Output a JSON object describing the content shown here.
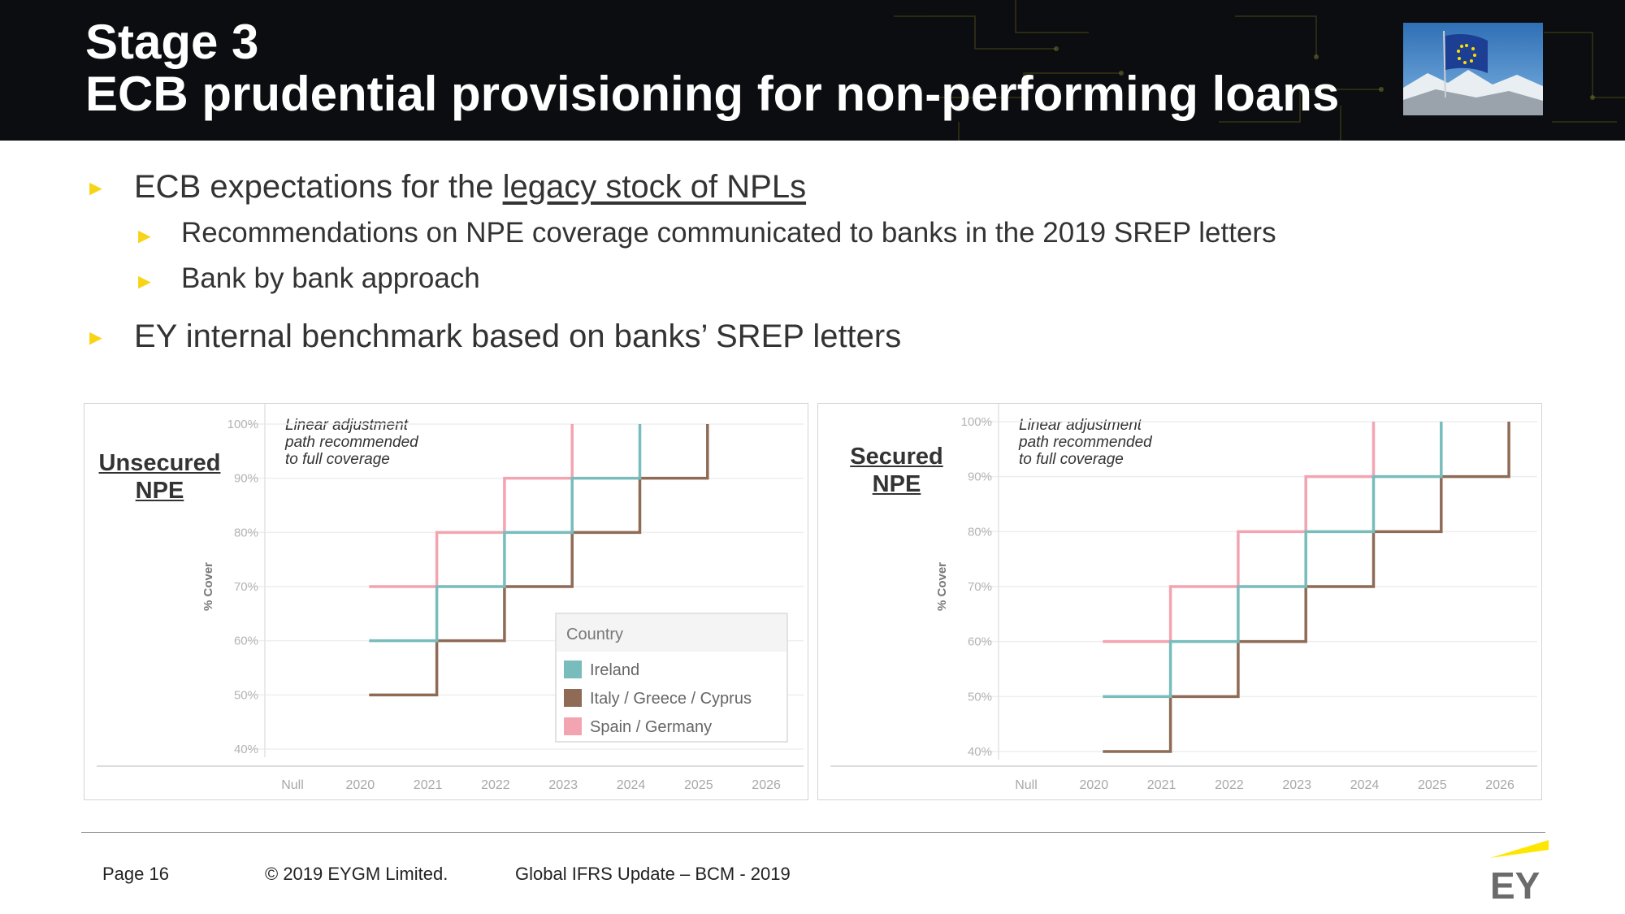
{
  "header": {
    "title_line1": "Stage 3",
    "title_line2": "ECB prudential provisioning for non-performing loans"
  },
  "bullets": {
    "b1_prefix": "ECB expectations for the ",
    "b1_link": "legacy stock of NPLs",
    "b1_sub1": "Recommendations on NPE coverage communicated to banks in the 2019 SREP letters",
    "b1_sub2": "Bank by bank approach",
    "b2": "EY internal benchmark based on banks’ SREP letters"
  },
  "panels": {
    "left_label_1": "Unsecured",
    "left_label_2": "NPE",
    "right_label_1": "Secured",
    "right_label_2": "NPE",
    "note_1": "Linear adjustment",
    "note_2": "path recommended",
    "note_3": "to full coverage"
  },
  "footer": {
    "page": "Page 16",
    "copyright": "© 2019 EYGM Limited.",
    "event": "Global IFRS Update – BCM - 2019",
    "logo_text": "EY"
  },
  "colors": {
    "ireland": "#78bcbc",
    "italy": "#8f6b56",
    "spain": "#f3a4b1",
    "accent": "#ffe600"
  },
  "chart_data": [
    {
      "type": "line",
      "name_label": "Unsecured NPE",
      "ylabel": "% Cover",
      "xlabel": "",
      "categories": [
        "Null",
        "2020",
        "2021",
        "2022",
        "2023",
        "2024",
        "2025",
        "2026"
      ],
      "yticks": [
        "40%",
        "50%",
        "60%",
        "70%",
        "80%",
        "90%",
        "100%"
      ],
      "ylim": [
        40,
        100
      ],
      "step": true,
      "legend_title": "Country",
      "legend_position": "bottom-right",
      "series": [
        {
          "name": "Ireland",
          "color": "#78bcbc",
          "values": [
            null,
            60,
            70,
            80,
            90,
            100,
            null,
            null
          ]
        },
        {
          "name": "Italy / Greece / Cyprus",
          "color": "#8f6b56",
          "values": [
            null,
            50,
            60,
            70,
            80,
            90,
            100,
            null
          ]
        },
        {
          "name": "Spain / Germany",
          "color": "#f3a4b1",
          "values": [
            null,
            70,
            80,
            90,
            100,
            null,
            null,
            null
          ]
        }
      ]
    },
    {
      "type": "line",
      "name_label": "Secured NPE",
      "ylabel": "% Cover",
      "xlabel": "",
      "categories": [
        "Null",
        "2020",
        "2021",
        "2022",
        "2023",
        "2024",
        "2025",
        "2026"
      ],
      "yticks": [
        "40%",
        "50%",
        "60%",
        "70%",
        "80%",
        "90%",
        "100%"
      ],
      "ylim": [
        40,
        100
      ],
      "step": true,
      "legend_position": "none",
      "series": [
        {
          "name": "Ireland",
          "color": "#78bcbc",
          "values": [
            null,
            50,
            60,
            70,
            80,
            90,
            100,
            null
          ]
        },
        {
          "name": "Italy / Greece / Cyprus",
          "color": "#8f6b56",
          "values": [
            null,
            40,
            50,
            60,
            70,
            80,
            90,
            100
          ]
        },
        {
          "name": "Spain / Germany",
          "color": "#f3a4b1",
          "values": [
            null,
            60,
            70,
            80,
            90,
            100,
            null,
            null
          ]
        }
      ]
    }
  ]
}
